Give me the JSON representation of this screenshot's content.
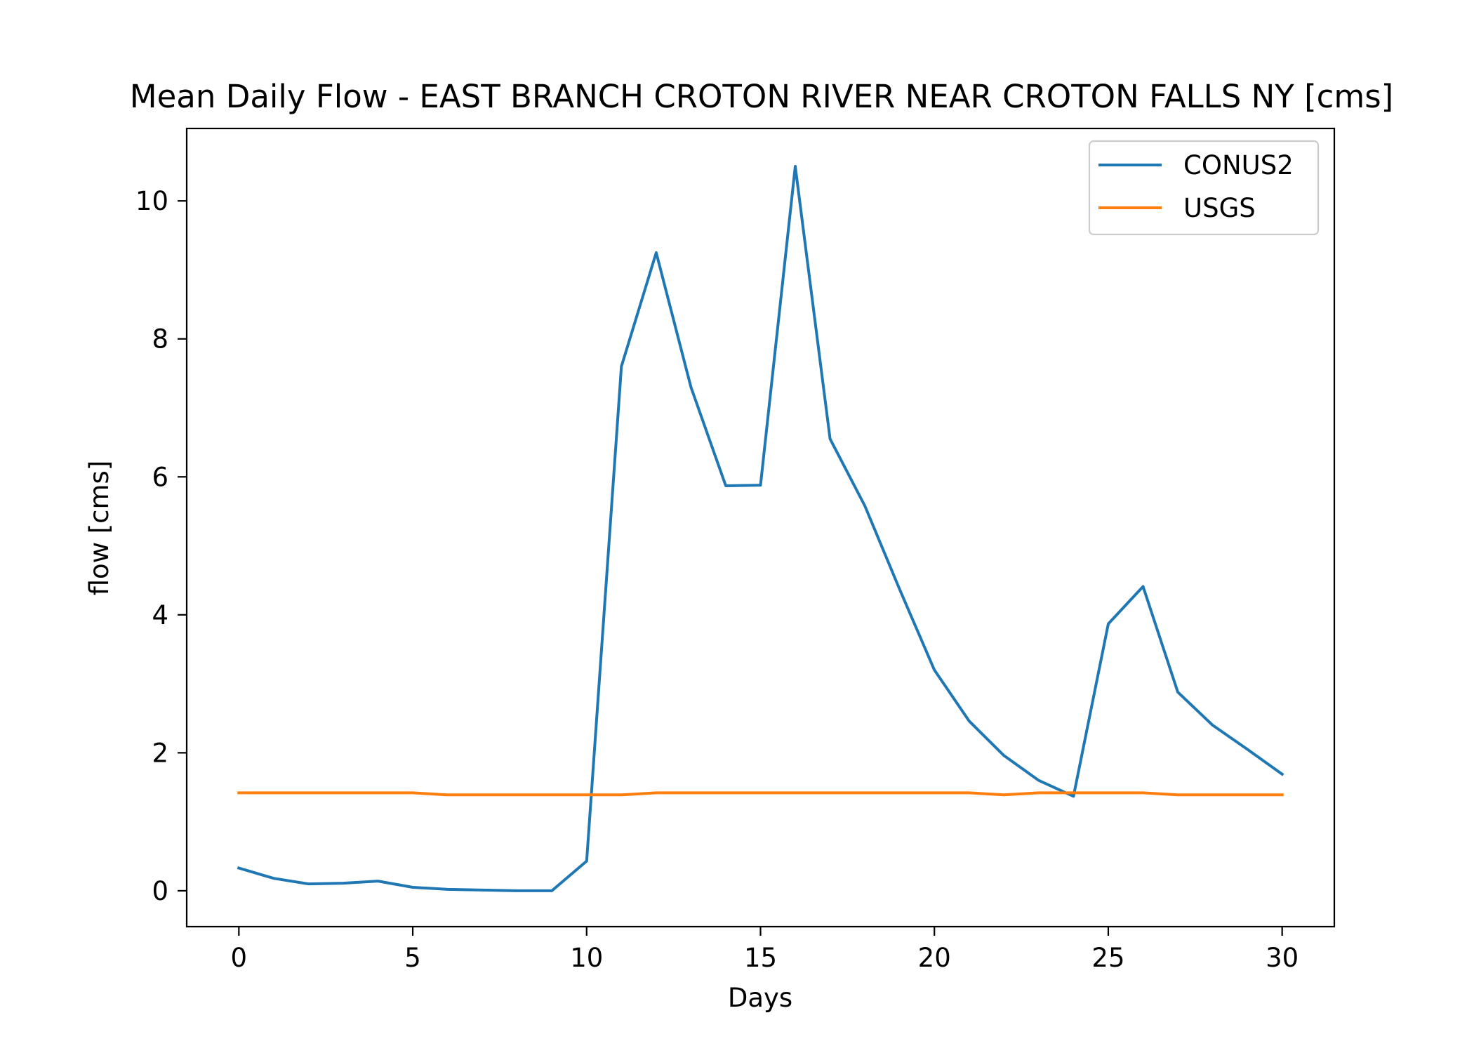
{
  "chart_data": {
    "type": "line",
    "title": "Mean Daily Flow - EAST BRANCH CROTON RIVER NEAR CROTON FALLS NY [cms]",
    "xlabel": "Days",
    "ylabel": "flow [cms]",
    "xlim": [
      -1.5,
      31.5
    ],
    "ylim": [
      -0.52,
      11.05
    ],
    "xticks": [
      0,
      5,
      10,
      15,
      20,
      25,
      30
    ],
    "yticks": [
      0,
      2,
      4,
      6,
      8,
      10
    ],
    "grid": false,
    "legend_position": "top-right",
    "x": [
      0,
      1,
      2,
      3,
      4,
      5,
      6,
      7,
      8,
      9,
      10,
      11,
      12,
      13,
      14,
      15,
      16,
      17,
      18,
      19,
      20,
      21,
      22,
      23,
      24,
      25,
      26,
      27,
      28,
      29,
      30
    ],
    "series": [
      {
        "name": "CONUS2",
        "color": "#1f77b4",
        "values": [
          0.33,
          0.18,
          0.1,
          0.11,
          0.14,
          0.05,
          0.02,
          0.01,
          0.0,
          0.0,
          0.43,
          7.6,
          9.25,
          7.3,
          5.87,
          5.88,
          10.5,
          6.55,
          5.58,
          4.37,
          3.2,
          2.46,
          1.96,
          1.6,
          1.37,
          3.87,
          4.41,
          2.88,
          2.4,
          2.05,
          1.69
        ]
      },
      {
        "name": "USGS",
        "color": "#ff7f0e",
        "values": [
          1.42,
          1.42,
          1.42,
          1.42,
          1.42,
          1.42,
          1.39,
          1.39,
          1.39,
          1.39,
          1.39,
          1.39,
          1.42,
          1.42,
          1.42,
          1.42,
          1.42,
          1.42,
          1.42,
          1.42,
          1.42,
          1.42,
          1.39,
          1.42,
          1.42,
          1.42,
          1.42,
          1.39,
          1.39,
          1.39,
          1.39
        ]
      }
    ]
  }
}
